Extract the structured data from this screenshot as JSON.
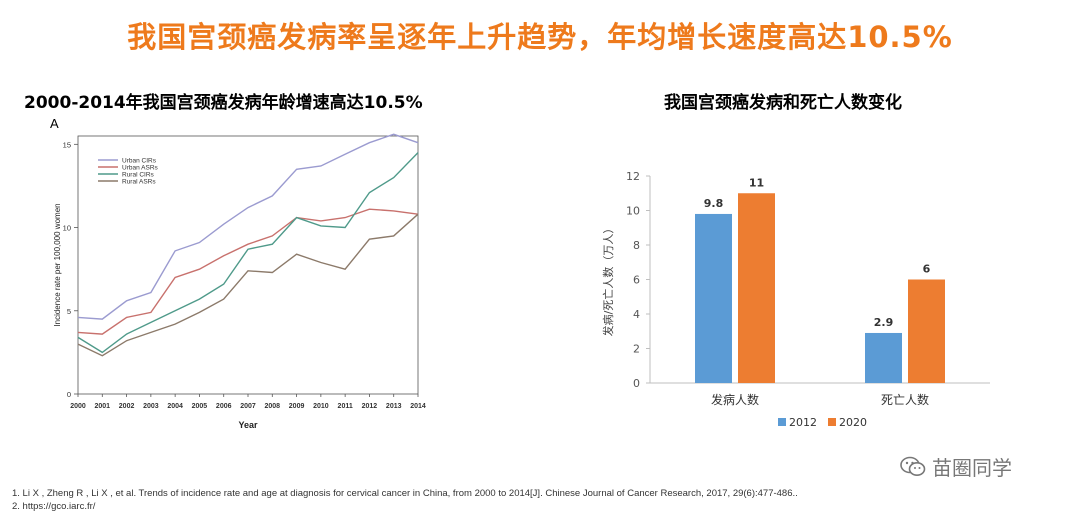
{
  "headline": "我国宫颈癌发病率呈逐年上升趋势，年均增长速度高达10.5%",
  "left_subtitle": "2000-2014年我国宫颈癌发病年龄增速高达10.5%",
  "right_subtitle": "我国宫颈癌发病和死亡人数变化",
  "panel_letter": "A",
  "watermark": "苗圈同学",
  "references": [
    "1.  Li X , Zheng R , Li X , et al. Trends of incidence rate and age at diagnosis for cervical cancer in China, from 2000 to 2014[J]. Chinese Journal of Cancer Research, 2017, 29(6):477-486..",
    "2.  https://gco.iarc.fr/"
  ],
  "chart_data": [
    {
      "type": "line",
      "xlabel": "Year",
      "ylabel": "Incidence rate per 100,000 women",
      "x": [
        2000,
        2001,
        2002,
        2003,
        2004,
        2005,
        2006,
        2007,
        2008,
        2009,
        2010,
        2011,
        2012,
        2013,
        2014
      ],
      "ylim": [
        0,
        15.5
      ],
      "yticks": [
        0,
        5,
        10,
        15
      ],
      "legend_position": "top-left",
      "series": [
        {
          "name": "Urban CIRs",
          "color": "#9b9bd0",
          "values": [
            4.6,
            4.5,
            5.6,
            6.1,
            8.6,
            9.1,
            10.2,
            11.2,
            11.9,
            13.5,
            13.7,
            14.4,
            15.1,
            15.6,
            15.1
          ]
        },
        {
          "name": "Urban ASRs",
          "color": "#c8716d",
          "values": [
            3.7,
            3.6,
            4.6,
            4.9,
            7.0,
            7.5,
            8.3,
            9.0,
            9.5,
            10.6,
            10.4,
            10.6,
            11.1,
            11.0,
            10.8
          ]
        },
        {
          "name": "Rural CIRs",
          "color": "#4f9a8a",
          "values": [
            3.4,
            2.5,
            3.6,
            4.3,
            5.0,
            5.7,
            6.6,
            8.7,
            9.0,
            10.6,
            10.1,
            10.0,
            12.1,
            13.0,
            14.5
          ]
        },
        {
          "name": "Rural ASRs",
          "color": "#8c7a6a",
          "values": [
            3.0,
            2.3,
            3.2,
            3.7,
            4.2,
            4.9,
            5.7,
            7.4,
            7.3,
            8.4,
            7.9,
            7.5,
            9.3,
            9.5,
            10.8
          ]
        }
      ]
    },
    {
      "type": "bar",
      "ylabel": "发病/死亡人数（万人）",
      "categories": [
        "发病人数",
        "死亡人数"
      ],
      "ylim": [
        0,
        12
      ],
      "yticks": [
        0,
        2,
        4,
        6,
        8,
        10,
        12
      ],
      "legend_position": "bottom",
      "series": [
        {
          "name": "2012",
          "color": "#5b9bd5",
          "values": [
            9.8,
            2.9
          ]
        },
        {
          "name": "2020",
          "color": "#ed7d31",
          "values": [
            11,
            6
          ]
        }
      ]
    }
  ]
}
